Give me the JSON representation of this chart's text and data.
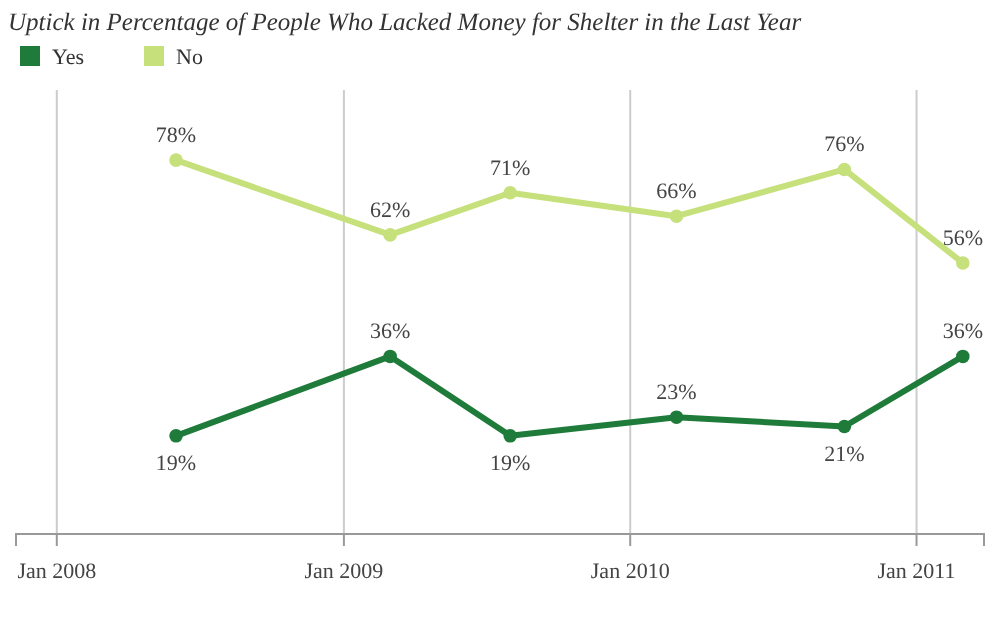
{
  "chart_data": {
    "type": "line",
    "title": "Uptick in Percentage of People Who Lacked Money for Shelter in the Last Year",
    "x": [
      "2008-06",
      "2009-03",
      "2009-08",
      "2010-03",
      "2010-10",
      "2011-03"
    ],
    "series": [
      {
        "name": "Yes",
        "color": "#1e7b3a",
        "values": [
          19,
          36,
          19,
          23,
          21,
          36
        ],
        "value_labels": [
          "19%",
          "36%",
          "19%",
          "23%",
          "21%",
          "36%"
        ]
      },
      {
        "name": "No",
        "color": "#c6e07c",
        "values": [
          78,
          62,
          71,
          66,
          76,
          56
        ],
        "value_labels": [
          "78%",
          "62%",
          "71%",
          "66%",
          "76%",
          "56%"
        ]
      }
    ],
    "xlim": [
      "2007-11-10",
      "2011-03-28"
    ],
    "xticks": [
      {
        "value": "2008-01",
        "label": "Jan 2008"
      },
      {
        "value": "2009-01",
        "label": "Jan 2009"
      },
      {
        "value": "2010-01",
        "label": "Jan 2010"
      },
      {
        "value": "2011-01",
        "label": "Jan 2011"
      }
    ],
    "ylim": [
      -2,
      93
    ],
    "grid": "x",
    "legend": "top left",
    "marker": "circle",
    "tick_labels": "x"
  }
}
